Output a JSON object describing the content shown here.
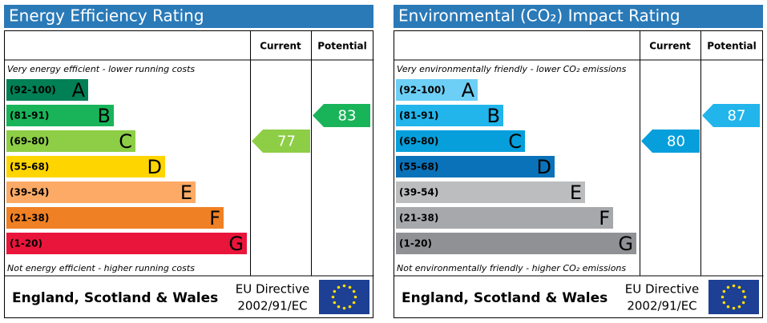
{
  "panels": [
    {
      "title": "Energy Efficiency Rating",
      "current_header": "Current",
      "potential_header": "Potential",
      "top_note": "Very energy efficient - lower running costs",
      "bottom_note": "Not energy efficient - higher running costs",
      "bands": [
        {
          "range": "(92-100)",
          "letter": "A",
          "color": "#008054"
        },
        {
          "range": "(81-91)",
          "letter": "B",
          "color": "#19b459"
        },
        {
          "range": "(69-80)",
          "letter": "C",
          "color": "#8dce46"
        },
        {
          "range": "(55-68)",
          "letter": "D",
          "color": "#ffd500"
        },
        {
          "range": "(39-54)",
          "letter": "E",
          "color": "#fcaa65"
        },
        {
          "range": "(21-38)",
          "letter": "F",
          "color": "#ef8023"
        },
        {
          "range": "(1-20)",
          "letter": "G",
          "color": "#e9153b"
        }
      ],
      "current": 77,
      "potential": 83,
      "footer_region": "England, Scotland & Wales",
      "footer_directive_line1": "EU Directive",
      "footer_directive_line2": "2002/91/EC"
    },
    {
      "title": "Environmental (CO₂) Impact Rating",
      "current_header": "Current",
      "potential_header": "Potential",
      "top_note": "Very environmentally friendly - lower CO₂ emissions",
      "bottom_note": "Not environmentally friendly - higher CO₂ emissions",
      "bands": [
        {
          "range": "(92-100)",
          "letter": "A",
          "color": "#6dcff6"
        },
        {
          "range": "(81-91)",
          "letter": "B",
          "color": "#22b5eb"
        },
        {
          "range": "(69-80)",
          "letter": "C",
          "color": "#069fdb"
        },
        {
          "range": "(55-68)",
          "letter": "D",
          "color": "#0a72b9"
        },
        {
          "range": "(39-54)",
          "letter": "E",
          "color": "#bbbdbf"
        },
        {
          "range": "(21-38)",
          "letter": "F",
          "color": "#a6a8ab"
        },
        {
          "range": "(1-20)",
          "letter": "G",
          "color": "#8f9194"
        }
      ],
      "current": 80,
      "potential": 87,
      "footer_region": "England, Scotland & Wales",
      "footer_directive_line1": "EU Directive",
      "footer_directive_line2": "2002/91/EC"
    }
  ]
}
